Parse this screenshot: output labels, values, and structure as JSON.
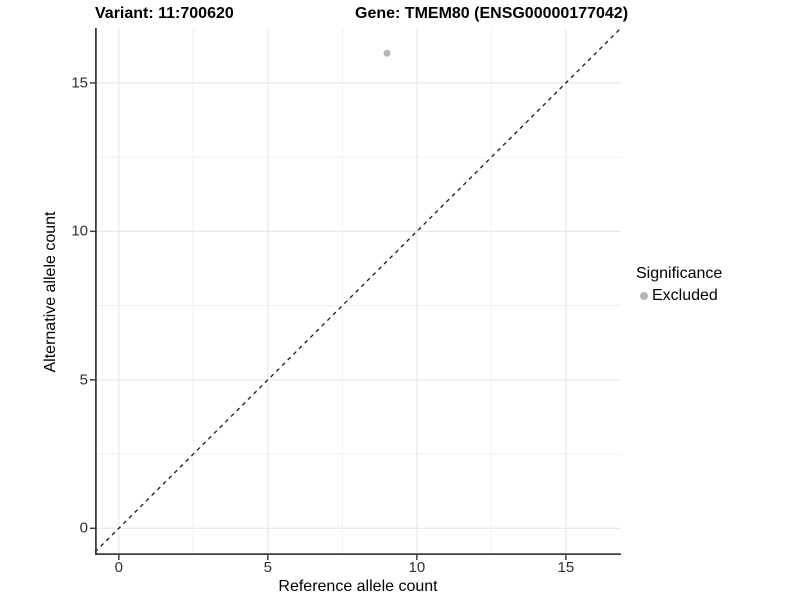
{
  "chart_data": {
    "type": "scatter",
    "title_left": "Variant: 11:700620",
    "title_right": "Gene: TMEM80 (ENSG00000177042)",
    "xlabel": "Reference allele count",
    "ylabel": "Alternative allele count",
    "xlim": [
      -0.8,
      16.85
    ],
    "ylim": [
      -0.9,
      16.85
    ],
    "x_ticks": [
      0,
      5,
      10,
      15
    ],
    "y_ticks": [
      0,
      5,
      10,
      15
    ],
    "x_minor_gridlines": [
      2.5,
      7.5,
      12.5
    ],
    "y_minor_gridlines": [
      2.5,
      7.5,
      12.5
    ],
    "grid": "major and minor, light grey on white background",
    "points": [
      {
        "x": 9,
        "y": 16,
        "series": "Excluded"
      }
    ],
    "reference_line": {
      "type": "abline",
      "slope": 1,
      "intercept": 0,
      "style": "dashed",
      "color": "#1a1a1a"
    },
    "legend": {
      "title": "Significance",
      "position": "right",
      "items": [
        {
          "label": "Excluded",
          "marker": "circle",
          "color": "#b4b4b4"
        }
      ]
    },
    "colors": {
      "point": "#b5b5b5",
      "grid_major": "#e4e4e4",
      "grid_minor": "#f0f0f0",
      "axis_line": "#3d3d3d",
      "tick_mark": "#333333"
    }
  }
}
